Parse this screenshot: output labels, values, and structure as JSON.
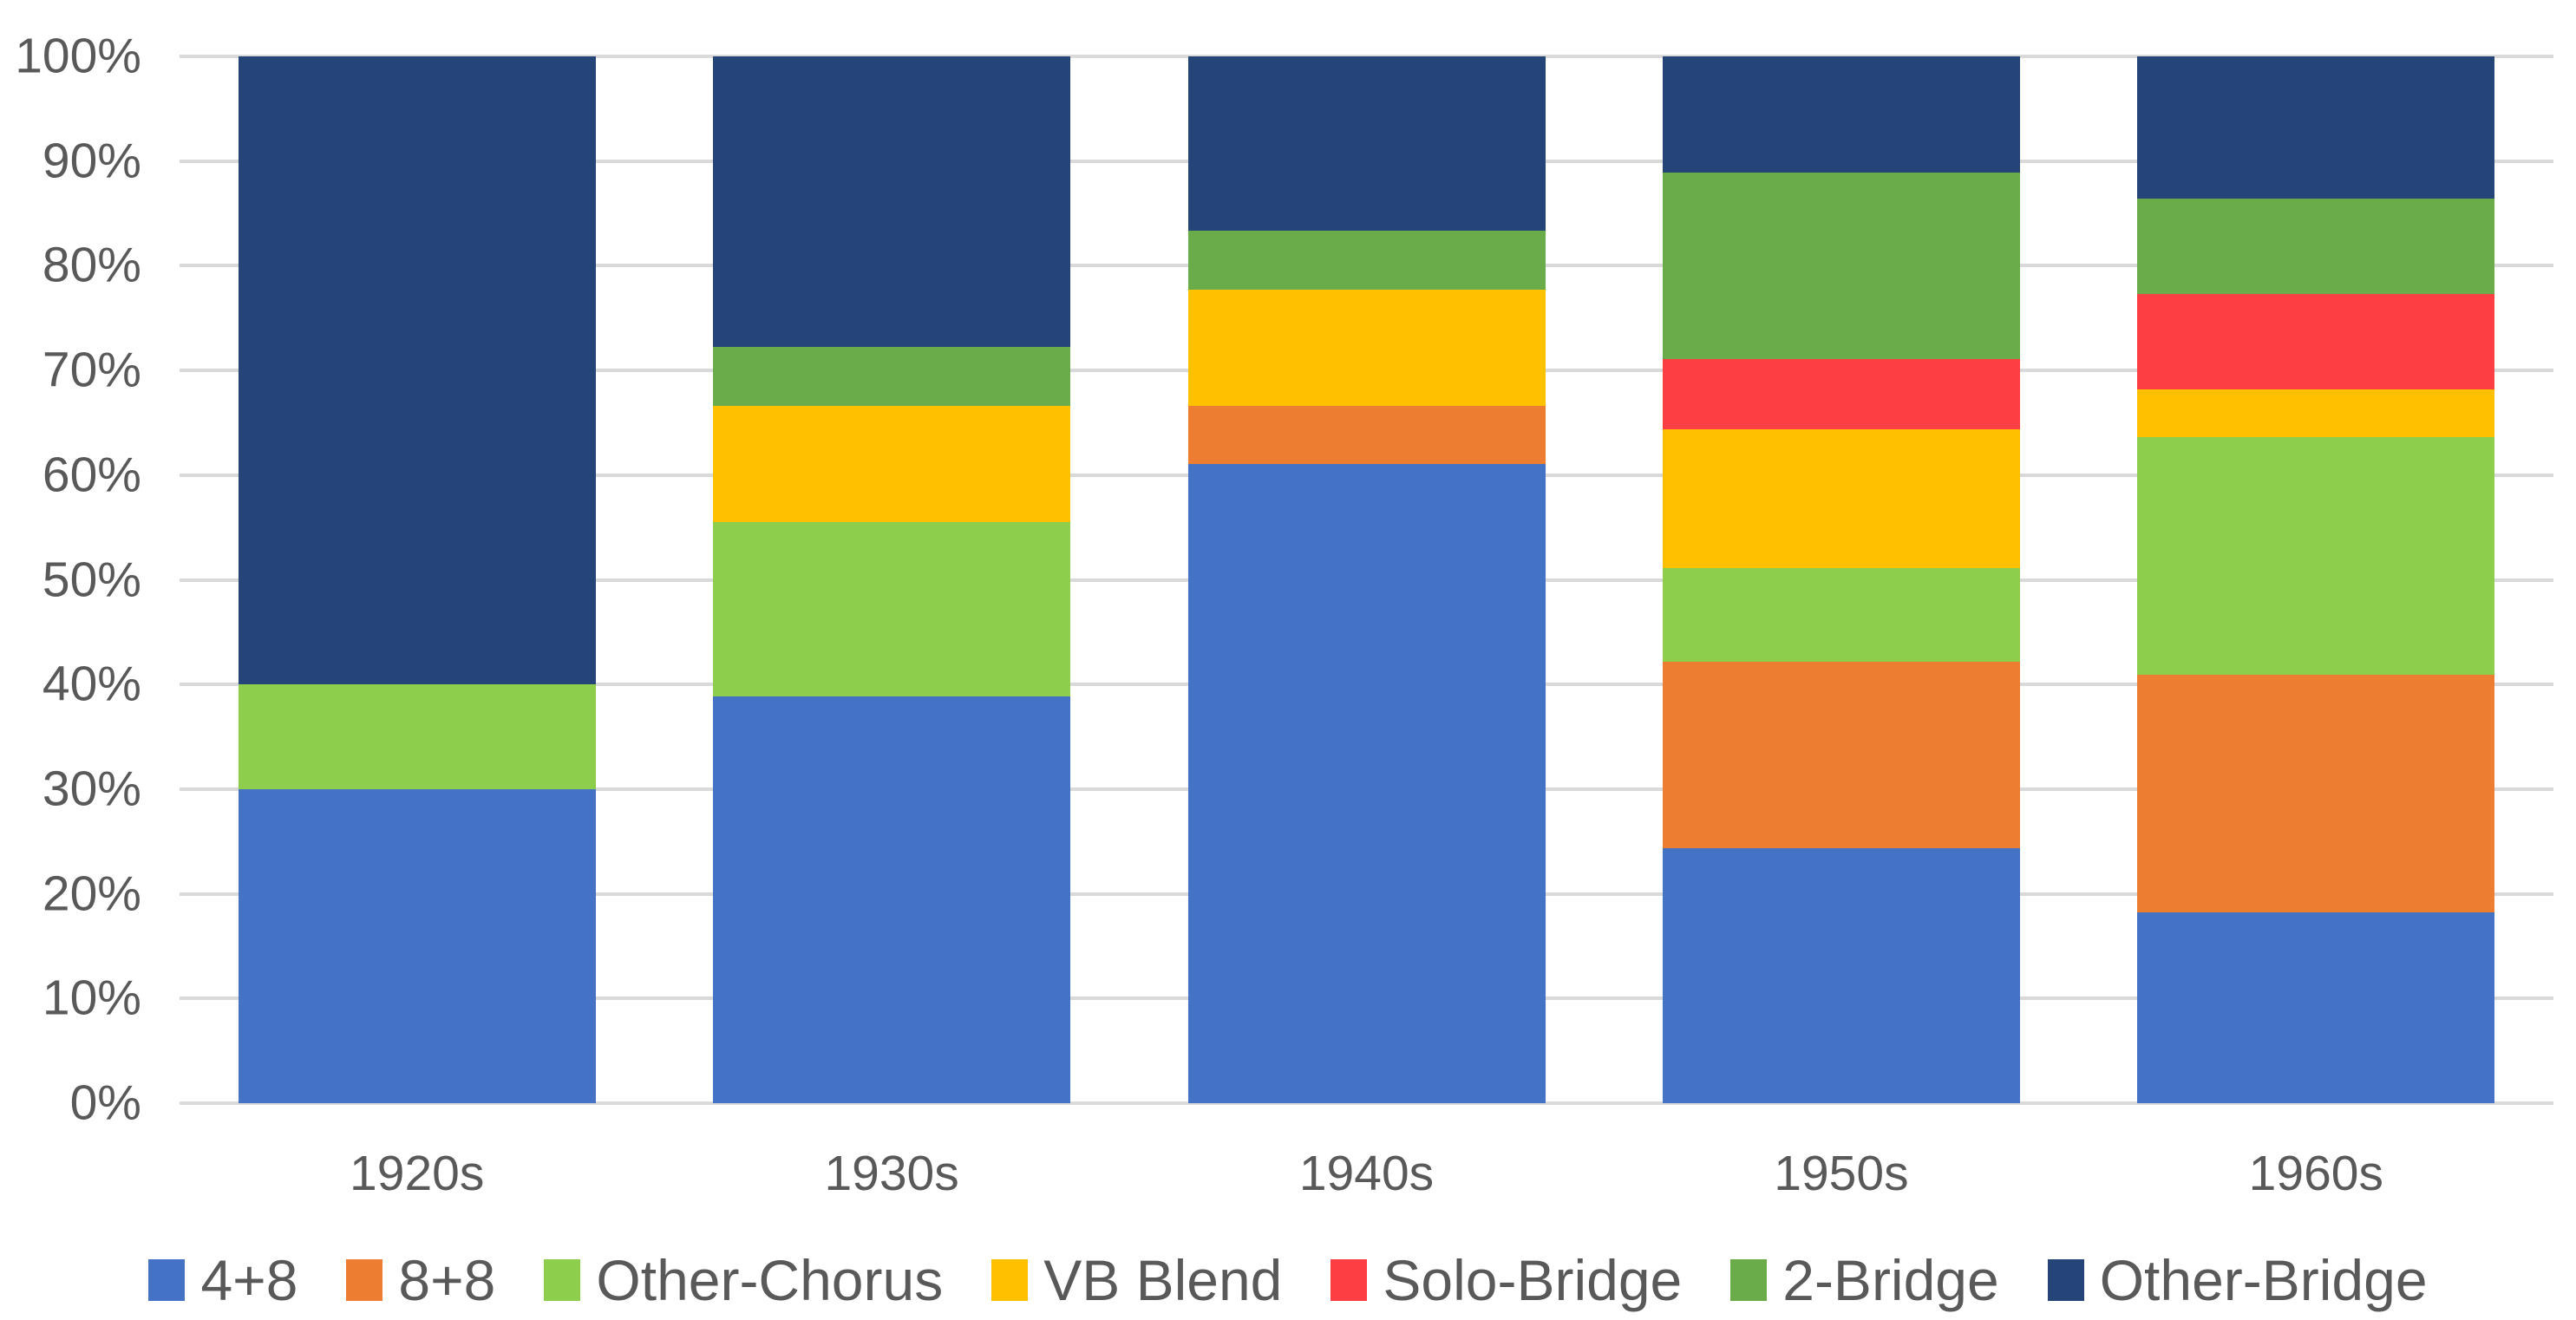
{
  "chart_data": {
    "type": "bar",
    "subtype": "stacked-100-percent",
    "title": "",
    "categories": [
      "1920s",
      "1930s",
      "1940s",
      "1950s",
      "1960s"
    ],
    "series": [
      {
        "name": "4+8",
        "color": "#4472C4",
        "values": [
          30.0,
          38.9,
          61.1,
          24.4,
          18.2
        ]
      },
      {
        "name": "8+8",
        "color": "#ED7D31",
        "values": [
          0,
          0,
          5.6,
          17.8,
          22.7
        ]
      },
      {
        "name": "Other-Chorus",
        "color": "#8DCF4D",
        "values": [
          10.0,
          16.7,
          0,
          8.9,
          22.7
        ]
      },
      {
        "name": "VB Blend",
        "color": "#FFC000",
        "values": [
          0,
          11.1,
          11.1,
          13.3,
          4.5
        ]
      },
      {
        "name": "Solo-Bridge",
        "color": "#FC3F42",
        "values": [
          0,
          0,
          0,
          6.7,
          9.1
        ]
      },
      {
        "name": "2-Bridge",
        "color": "#6AAB4A",
        "values": [
          0,
          5.6,
          5.6,
          17.8,
          9.1
        ]
      },
      {
        "name": "Other-Bridge",
        "color": "#254477",
        "values": [
          60.0,
          27.8,
          16.7,
          11.1,
          13.6
        ]
      }
    ],
    "y_axis": {
      "min": 0,
      "max": 100,
      "tick_step": 10,
      "tick_labels": [
        "0%",
        "10%",
        "20%",
        "30%",
        "40%",
        "50%",
        "60%",
        "70%",
        "80%",
        "90%",
        "100%"
      ]
    },
    "x_axis": {
      "tick_labels": [
        "1920s",
        "1930s",
        "1940s",
        "1950s",
        "1960s"
      ]
    },
    "legend": {
      "position": "bottom",
      "items": [
        "4+8",
        "8+8",
        "Other-Chorus",
        "VB Blend",
        "Solo-Bridge",
        "2-Bridge",
        "Other-Bridge"
      ]
    },
    "grid": true
  },
  "style": {
    "text_color": "#595959",
    "gridline_color": "#D9D9D9",
    "background": "#FFFFFF"
  }
}
